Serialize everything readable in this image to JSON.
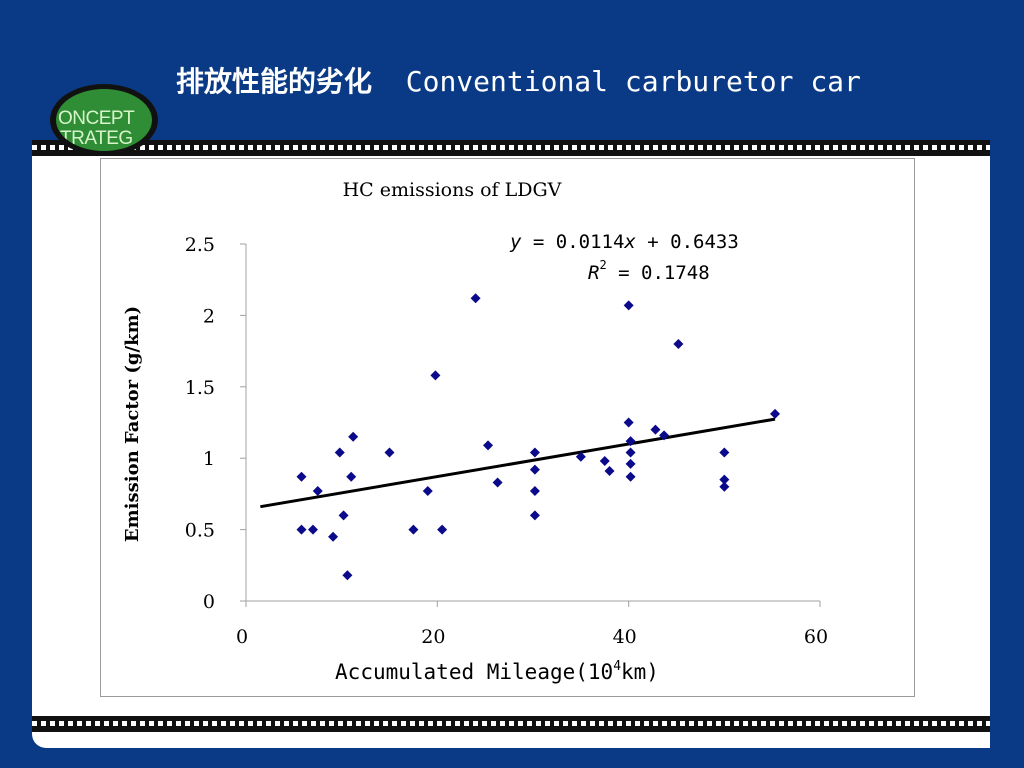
{
  "slide": {
    "title_cn": "排放性能的劣化",
    "title_en": "Conventional carburetor car",
    "logo_text_lines": [
      "ONCEPT",
      "TRATEG"
    ]
  },
  "chart_data": {
    "type": "scatter",
    "title": "HC emissions of LDGV",
    "xlabel_main": "Accumulated Mileage(10",
    "xlabel_sup": "4",
    "xlabel_end": "km)",
    "ylabel": "Emission Factor (g/km)",
    "xlim": [
      0,
      60
    ],
    "ylim": [
      0,
      2.5
    ],
    "x_ticks": [
      "0",
      "20",
      "40",
      "60"
    ],
    "y_ticks": [
      "0",
      "0.5",
      "1",
      "1.5",
      "2",
      "2.5"
    ],
    "marker_color": "#0a0a8a",
    "trendline": {
      "slope": 0.0114,
      "intercept": 0.6433,
      "x_range": [
        1.5,
        55.3
      ],
      "equation_y": "y",
      "equation_rest": " = 0.0114",
      "equation_x": "x",
      "equation_tail": " + 0.6433",
      "r2_label": "R",
      "r2_sup": "2",
      "r2_value": " = 0.1748"
    },
    "series": [
      {
        "points": [
          [
            5.8,
            0.87
          ],
          [
            5.8,
            0.5
          ],
          [
            7,
            0.5
          ],
          [
            7.5,
            0.77
          ],
          [
            9.1,
            0.45
          ],
          [
            9.8,
            1.04
          ],
          [
            10.2,
            0.6
          ],
          [
            10.6,
            0.18
          ],
          [
            11,
            0.87
          ],
          [
            11.2,
            1.15
          ],
          [
            15,
            1.04
          ],
          [
            17.5,
            0.5
          ],
          [
            19,
            0.77
          ],
          [
            19.8,
            1.58
          ],
          [
            20.5,
            0.5
          ],
          [
            24,
            2.12
          ],
          [
            25.3,
            1.09
          ],
          [
            26.3,
            0.83
          ],
          [
            30.2,
            1.04
          ],
          [
            30.2,
            0.92
          ],
          [
            30.2,
            0.77
          ],
          [
            30.2,
            0.6
          ],
          [
            35,
            1.01
          ],
          [
            37.5,
            0.98
          ],
          [
            38,
            0.91
          ],
          [
            40,
            2.07
          ],
          [
            40,
            1.25
          ],
          [
            40.2,
            1.12
          ],
          [
            40.2,
            1.04
          ],
          [
            40.2,
            0.96
          ],
          [
            40.2,
            0.87
          ],
          [
            42.8,
            1.2
          ],
          [
            43.7,
            1.16
          ],
          [
            45.2,
            1.8
          ],
          [
            50,
            1.04
          ],
          [
            50,
            0.85
          ],
          [
            50,
            0.8
          ],
          [
            55.3,
            1.31
          ]
        ]
      }
    ]
  }
}
